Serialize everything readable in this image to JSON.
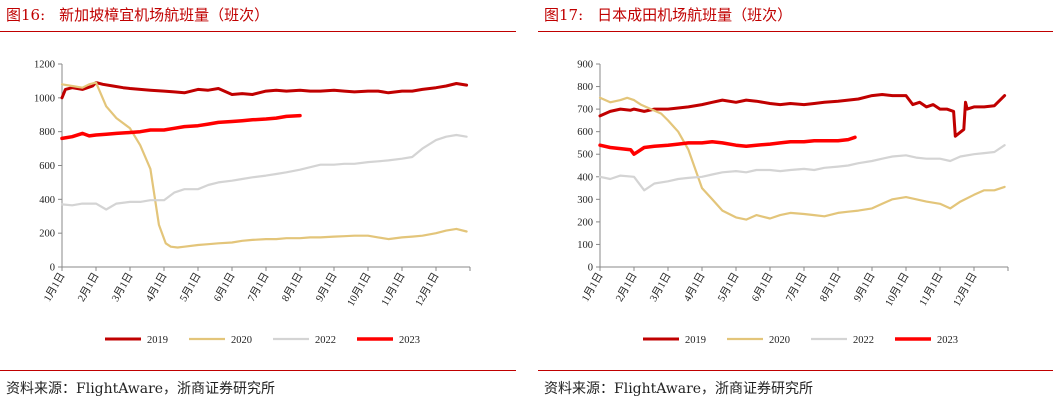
{
  "colors": {
    "title": "#c00000",
    "s2019": "#c00000",
    "s2020": "#e3c57a",
    "s2022": "#d4d4d4",
    "s2023": "#ff0000"
  },
  "source": "资料来源：FlightAware，浙商证券研究所",
  "chart_data": [
    {
      "type": "line",
      "fig_label": "图16:",
      "title": "新加坡樟宜机场航班量（班次）",
      "ylim": [
        0,
        1200
      ],
      "ytick_step": 200,
      "yticks": [
        "0",
        "200",
        "400",
        "600",
        "800",
        "1000",
        "1200"
      ],
      "categories": [
        "1月1日",
        "2月1日",
        "3月1日",
        "4月1日",
        "5月1日",
        "6月1日",
        "7月1日",
        "8月1日",
        "9月1日",
        "10月1日",
        "11月1日",
        "12月1日"
      ],
      "legend_position": "bottom",
      "grid": false,
      "series": [
        {
          "name": "2019",
          "color_key": "s2019",
          "width": 3,
          "x": [
            0,
            0.1,
            0.3,
            0.6,
            0.9,
            1,
            1.2,
            1.5,
            1.8,
            2,
            2.3,
            2.6,
            3,
            3.3,
            3.6,
            4,
            4.3,
            4.6,
            5,
            5.3,
            5.6,
            6,
            6.3,
            6.6,
            7,
            7.3,
            7.6,
            8,
            8.3,
            8.6,
            9,
            9.3,
            9.6,
            10,
            10.3,
            10.6,
            11,
            11.3,
            11.6,
            11.9
          ],
          "y": [
            1000,
            1050,
            1060,
            1050,
            1070,
            1090,
            1080,
            1070,
            1060,
            1055,
            1050,
            1045,
            1040,
            1035,
            1030,
            1050,
            1045,
            1055,
            1020,
            1025,
            1020,
            1040,
            1045,
            1040,
            1045,
            1040,
            1040,
            1045,
            1040,
            1035,
            1040,
            1040,
            1030,
            1040,
            1040,
            1050,
            1060,
            1070,
            1085,
            1075
          ]
        },
        {
          "name": "2020",
          "color_key": "s2020",
          "width": 2.2,
          "x": [
            0,
            0.3,
            0.6,
            0.8,
            1,
            1.3,
            1.6,
            2,
            2.3,
            2.6,
            2.85,
            3.05,
            3.2,
            3.4,
            3.6,
            4,
            4.3,
            4.6,
            5,
            5.3,
            5.6,
            6,
            6.3,
            6.6,
            7,
            7.3,
            7.6,
            8,
            8.3,
            8.6,
            9,
            9.3,
            9.6,
            10,
            10.3,
            10.6,
            11,
            11.3,
            11.6,
            11.9
          ],
          "y": [
            1080,
            1070,
            1060,
            1080,
            1090,
            950,
            880,
            820,
            720,
            580,
            250,
            140,
            120,
            115,
            120,
            130,
            135,
            140,
            145,
            155,
            160,
            165,
            165,
            170,
            170,
            175,
            175,
            180,
            182,
            185,
            185,
            175,
            165,
            175,
            180,
            185,
            200,
            215,
            225,
            210
          ]
        },
        {
          "name": "2022",
          "color_key": "s2022",
          "width": 2.2,
          "x": [
            0,
            0.3,
            0.6,
            1,
            1.3,
            1.6,
            2,
            2.3,
            2.6,
            3,
            3.3,
            3.6,
            4,
            4.3,
            4.6,
            5,
            5.3,
            5.6,
            6,
            6.3,
            6.6,
            7,
            7.3,
            7.6,
            8,
            8.3,
            8.6,
            9,
            9.3,
            9.6,
            10,
            10.3,
            10.6,
            11,
            11.3,
            11.6,
            11.9
          ],
          "y": [
            370,
            365,
            375,
            375,
            340,
            375,
            385,
            385,
            395,
            395,
            440,
            460,
            460,
            485,
            500,
            510,
            520,
            530,
            540,
            550,
            560,
            575,
            590,
            605,
            605,
            610,
            610,
            620,
            625,
            630,
            640,
            650,
            700,
            750,
            770,
            780,
            770
          ]
        },
        {
          "name": "2023",
          "color_key": "s2023",
          "width": 3.5,
          "x": [
            0,
            0.3,
            0.6,
            0.8,
            1,
            1.3,
            1.6,
            2,
            2.3,
            2.6,
            3,
            3.3,
            3.6,
            4,
            4.3,
            4.6,
            5,
            5.3,
            5.6,
            6,
            6.3,
            6.6,
            7
          ],
          "y": [
            760,
            770,
            790,
            775,
            780,
            785,
            790,
            795,
            800,
            810,
            810,
            820,
            830,
            835,
            845,
            855,
            860,
            865,
            870,
            875,
            880,
            890,
            895
          ]
        }
      ]
    },
    {
      "type": "line",
      "fig_label": "图17:",
      "title": "日本成田机场航班量（班次）",
      "ylim": [
        0,
        900
      ],
      "ytick_step": 100,
      "yticks": [
        "0",
        "100",
        "200",
        "300",
        "400",
        "500",
        "600",
        "700",
        "800",
        "900"
      ],
      "categories": [
        "1月1日",
        "2月1日",
        "3月1日",
        "4月1日",
        "5月1日",
        "6月1日",
        "7月1日",
        "8月1日",
        "9月1日",
        "10月1日",
        "11月1日",
        "12月1日"
      ],
      "legend_position": "bottom",
      "grid": false,
      "series": [
        {
          "name": "2019",
          "color_key": "s2019",
          "width": 3,
          "x": [
            0,
            0.3,
            0.6,
            0.9,
            1,
            1.3,
            1.6,
            2,
            2.3,
            2.6,
            3,
            3.3,
            3.6,
            4,
            4.3,
            4.6,
            5,
            5.3,
            5.6,
            6,
            6.3,
            6.6,
            7,
            7.3,
            7.6,
            8,
            8.3,
            8.6,
            9,
            9.2,
            9.4,
            9.6,
            9.8,
            10,
            10.2,
            10.4,
            10.45,
            10.7,
            10.75,
            10.8,
            11,
            11.3,
            11.6,
            11.9
          ],
          "y": [
            670,
            690,
            700,
            695,
            700,
            690,
            700,
            700,
            705,
            710,
            720,
            730,
            740,
            730,
            740,
            735,
            725,
            720,
            725,
            720,
            725,
            730,
            735,
            740,
            745,
            760,
            765,
            760,
            760,
            720,
            730,
            710,
            720,
            700,
            700,
            690,
            580,
            610,
            730,
            700,
            710,
            710,
            715,
            760
          ]
        },
        {
          "name": "2020",
          "color_key": "s2020",
          "width": 2.2,
          "x": [
            0,
            0.3,
            0.6,
            0.8,
            1,
            1.2,
            1.5,
            1.8,
            2,
            2.3,
            2.6,
            3,
            3.3,
            3.6,
            4,
            4.3,
            4.6,
            5,
            5.3,
            5.6,
            6,
            6.3,
            6.6,
            7,
            7.3,
            7.6,
            8,
            8.3,
            8.6,
            9,
            9.3,
            9.6,
            10,
            10.3,
            10.6,
            11,
            11.3,
            11.6,
            11.9
          ],
          "y": [
            750,
            730,
            740,
            750,
            740,
            720,
            700,
            680,
            650,
            600,
            520,
            350,
            300,
            250,
            220,
            210,
            230,
            215,
            230,
            240,
            235,
            230,
            225,
            240,
            245,
            250,
            260,
            280,
            300,
            310,
            300,
            290,
            280,
            260,
            290,
            320,
            340,
            340,
            355
          ]
        },
        {
          "name": "2022",
          "color_key": "s2022",
          "width": 2.2,
          "x": [
            0,
            0.3,
            0.6,
            1,
            1.3,
            1.6,
            2,
            2.3,
            2.6,
            3,
            3.3,
            3.6,
            4,
            4.3,
            4.6,
            5,
            5.3,
            5.6,
            6,
            6.3,
            6.6,
            7,
            7.3,
            7.6,
            8,
            8.3,
            8.6,
            9,
            9.3,
            9.6,
            10,
            10.3,
            10.6,
            11,
            11.3,
            11.6,
            11.9
          ],
          "y": [
            400,
            390,
            405,
            400,
            340,
            370,
            380,
            390,
            395,
            400,
            410,
            420,
            425,
            420,
            430,
            430,
            425,
            430,
            435,
            430,
            440,
            445,
            450,
            460,
            470,
            480,
            490,
            495,
            485,
            480,
            480,
            470,
            490,
            500,
            505,
            510,
            540
          ]
        },
        {
          "name": "2023",
          "color_key": "s2023",
          "width": 3.5,
          "x": [
            0,
            0.3,
            0.6,
            0.9,
            1,
            1.3,
            1.6,
            2,
            2.3,
            2.6,
            3,
            3.3,
            3.6,
            4,
            4.3,
            4.6,
            5,
            5.3,
            5.6,
            6,
            6.3,
            6.6,
            7,
            7.3,
            7.5
          ],
          "y": [
            540,
            530,
            525,
            520,
            500,
            530,
            535,
            540,
            545,
            550,
            550,
            555,
            550,
            540,
            535,
            540,
            545,
            550,
            555,
            555,
            560,
            560,
            560,
            565,
            575
          ]
        }
      ]
    }
  ]
}
